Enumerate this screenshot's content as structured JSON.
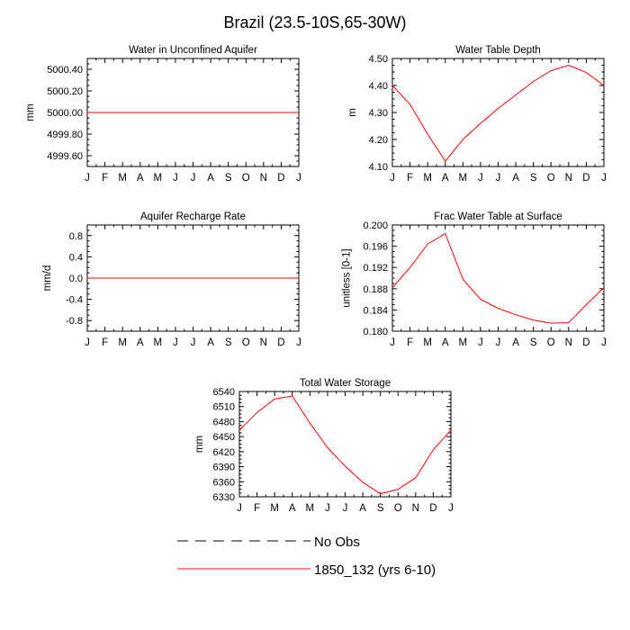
{
  "figure_title": "Brazil (23.5-10S,65-30W)",
  "months": [
    "J",
    "F",
    "M",
    "A",
    "M",
    "J",
    "J",
    "A",
    "S",
    "O",
    "N",
    "D",
    "J"
  ],
  "colors": {
    "model": "#ff0000",
    "obs": "#000000",
    "axis": "#000000"
  },
  "legend": {
    "obs_label": "No Obs",
    "model_label": "1850_132 (yrs 6-10)"
  },
  "chart_data": [
    {
      "id": "unconfined",
      "type": "line",
      "title": "Water in Unconfined Aquifer",
      "ylabel": "mm",
      "ylim": [
        4999.5,
        5000.5
      ],
      "yticks": [
        4999.6,
        4999.8,
        5000.0,
        5000.2,
        5000.4
      ],
      "ytick_labels": [
        "4999.60",
        "4999.80",
        "5000.00",
        "5000.20",
        "5000.40"
      ],
      "series": [
        {
          "name": "1850_132 (yrs 6-10)",
          "values": [
            5000,
            5000,
            5000,
            5000,
            5000,
            5000,
            5000,
            5000,
            5000,
            5000,
            5000,
            5000,
            5000
          ]
        }
      ]
    },
    {
      "id": "wtd",
      "type": "line",
      "title": "Water Table Depth",
      "ylabel": "m",
      "ylim": [
        4.1,
        4.5
      ],
      "yticks": [
        4.1,
        4.2,
        4.3,
        4.4,
        4.5
      ],
      "ytick_labels": [
        "4.10",
        "4.20",
        "4.30",
        "4.40",
        "4.50"
      ],
      "series": [
        {
          "name": "1850_132 (yrs 6-10)",
          "values": [
            4.4,
            4.33,
            4.22,
            4.12,
            4.2,
            4.26,
            4.315,
            4.365,
            4.415,
            4.455,
            4.475,
            4.448,
            4.4
          ]
        }
      ]
    },
    {
      "id": "recharge",
      "type": "line",
      "title": "Aquifer Recharge Rate",
      "ylabel": "mm/d",
      "ylim": [
        -1.0,
        1.0
      ],
      "yticks": [
        -0.8,
        -0.4,
        0.0,
        0.4,
        0.8
      ],
      "ytick_labels": [
        "-0.8",
        "-0.4",
        "0.0",
        "0.4",
        "0.8"
      ],
      "series": [
        {
          "name": "1850_132 (yrs 6-10)",
          "values": [
            0,
            0,
            0,
            0,
            0,
            0,
            0,
            0,
            0,
            0,
            0,
            0,
            0
          ]
        }
      ]
    },
    {
      "id": "frac",
      "type": "line",
      "title": "Frac Water Table at Surface",
      "ylabel": "unitless [0-1]",
      "ylim": [
        0.18,
        0.2
      ],
      "yticks": [
        0.18,
        0.184,
        0.188,
        0.192,
        0.196,
        0.2
      ],
      "ytick_labels": [
        "0.180",
        "0.184",
        "0.188",
        "0.192",
        "0.196",
        "0.200"
      ],
      "series": [
        {
          "name": "1850_132 (yrs 6-10)",
          "values": [
            0.1882,
            0.192,
            0.1964,
            0.1984,
            0.1898,
            0.186,
            0.1843,
            0.1831,
            0.1821,
            0.1815,
            0.1816,
            0.185,
            0.1882
          ]
        }
      ]
    },
    {
      "id": "tws",
      "type": "line",
      "title": "Total Water Storage",
      "ylabel": "mm",
      "ylim": [
        6330,
        6540
      ],
      "yticks": [
        6330,
        6360,
        6390,
        6420,
        6450,
        6480,
        6510,
        6540
      ],
      "ytick_labels": [
        "6330",
        "6360",
        "6390",
        "6420",
        "6450",
        "6480",
        "6510",
        "6540"
      ],
      "series": [
        {
          "name": "1850_132 (yrs 6-10)",
          "values": [
            6463,
            6498,
            6525,
            6531,
            6477,
            6428,
            6391,
            6359,
            6336,
            6345,
            6368,
            6424,
            6463
          ]
        }
      ]
    }
  ]
}
